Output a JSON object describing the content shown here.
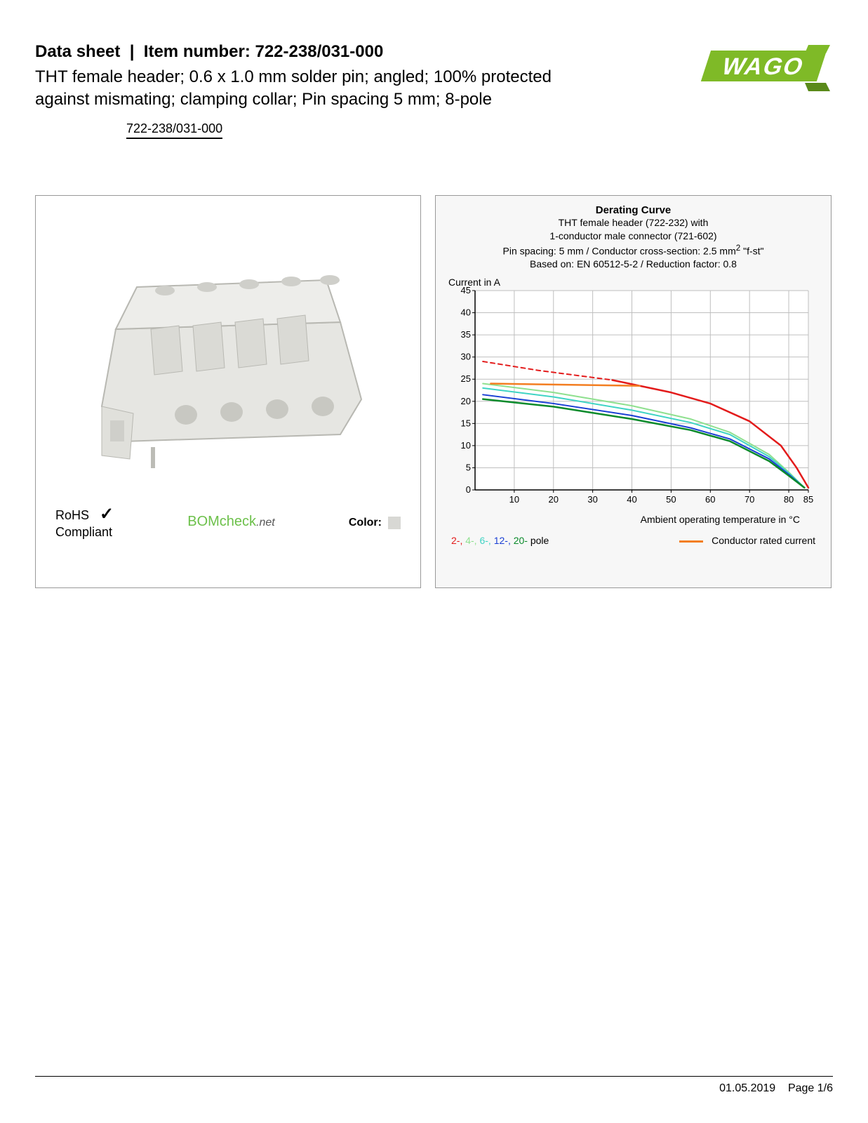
{
  "header": {
    "prefix": "Data sheet",
    "separator": "|",
    "item_label": "Item number:",
    "item_number": "722-238/031-000",
    "description": "THT female header; 0.6 x 1.0 mm solder pin; angled; 100% protected against mismating; clamping collar; Pin spacing 5 mm; 8-pole",
    "part_link": "722-238/031-000"
  },
  "logo": {
    "text": "WAGO",
    "fill": "#7fba27",
    "shadow": "#5a8a1a"
  },
  "left_panel": {
    "product_color": "#e6e6e2",
    "product_shade": "#cfcfca",
    "rohs_line1": "RoHS",
    "rohs_line2": "Compliant",
    "bomcheck_main": "BOMcheck",
    "bomcheck_suffix": ".net",
    "color_label": "Color:",
    "color_swatch": "#d8d8d4"
  },
  "chart": {
    "title": "Derating Curve",
    "sub1": "THT female header  (722-232) with",
    "sub2": "1-conductor male connector (721-602)",
    "sub3_a": "Pin spacing: 5 mm / Conductor cross-section: 2.5 mm",
    "sub3_sup": "2",
    "sub3_b": " \"f-st\"",
    "sub4": "Based on: EN 60512-5-2 / Reduction factor: 0.8",
    "ylabel": "Current in A",
    "xlabel": "Ambient operating temperature in °C",
    "ylim": [
      0,
      45
    ],
    "ytick_step": 5,
    "yticks": [
      0,
      5,
      10,
      15,
      20,
      25,
      30,
      35,
      40,
      45
    ],
    "xlim": [
      0,
      85
    ],
    "xticks": [
      10,
      20,
      30,
      40,
      50,
      60,
      70,
      80,
      85
    ],
    "grid_color": "#bfbfbf",
    "axis_color": "#000000",
    "background_color": "#ffffff",
    "series": {
      "conductor_rated": {
        "color": "#f37e21",
        "width": 2.5,
        "points": [
          [
            4,
            24
          ],
          [
            42,
            23.5
          ]
        ]
      },
      "pole2_dashed": {
        "color": "#e31b1b",
        "width": 2,
        "dash": "6 5",
        "points": [
          [
            2,
            29
          ],
          [
            16,
            27
          ],
          [
            35,
            24.8
          ]
        ]
      },
      "pole2": {
        "color": "#e31b1b",
        "width": 2.5,
        "points": [
          [
            35,
            24.8
          ],
          [
            50,
            22
          ],
          [
            60,
            19.5
          ],
          [
            70,
            15.5
          ],
          [
            78,
            10
          ],
          [
            82,
            5
          ],
          [
            85,
            0.5
          ]
        ]
      },
      "pole4": {
        "color": "#8fe08f",
        "width": 2,
        "points": [
          [
            2,
            24
          ],
          [
            20,
            22
          ],
          [
            40,
            19
          ],
          [
            55,
            16
          ],
          [
            65,
            13
          ],
          [
            75,
            8
          ],
          [
            80,
            4
          ],
          [
            84,
            0.5
          ]
        ]
      },
      "pole6": {
        "color": "#3fd4c4",
        "width": 2,
        "points": [
          [
            2,
            23
          ],
          [
            20,
            21
          ],
          [
            40,
            18
          ],
          [
            55,
            15.2
          ],
          [
            65,
            12.5
          ],
          [
            75,
            7.5
          ],
          [
            80,
            3.8
          ],
          [
            84,
            0.5
          ]
        ]
      },
      "pole12": {
        "color": "#1a3fd4",
        "width": 2,
        "points": [
          [
            2,
            21.5
          ],
          [
            20,
            19.5
          ],
          [
            40,
            16.8
          ],
          [
            55,
            14
          ],
          [
            65,
            11.5
          ],
          [
            75,
            7
          ],
          [
            80,
            3.5
          ],
          [
            84,
            0.5
          ]
        ]
      },
      "pole20": {
        "color": "#0a8a2a",
        "width": 2.5,
        "points": [
          [
            2,
            20.5
          ],
          [
            20,
            18.8
          ],
          [
            40,
            16
          ],
          [
            55,
            13.5
          ],
          [
            65,
            11
          ],
          [
            75,
            6.5
          ],
          [
            80,
            3.2
          ],
          [
            84,
            0.5
          ]
        ]
      }
    },
    "legend": {
      "poles": [
        {
          "label": "2-,",
          "color": "#e31b1b"
        },
        {
          "label": "4-,",
          "color": "#8fe08f"
        },
        {
          "label": "6-,",
          "color": "#3fd4c4"
        },
        {
          "label": "12-,",
          "color": "#1a3fd4"
        },
        {
          "label": "20-",
          "color": "#0a8a2a"
        }
      ],
      "poles_suffix": " pole",
      "conductor_label": "Conductor rated current",
      "conductor_color": "#f37e21"
    }
  },
  "footer": {
    "date": "01.05.2019",
    "page": "Page 1/6"
  }
}
